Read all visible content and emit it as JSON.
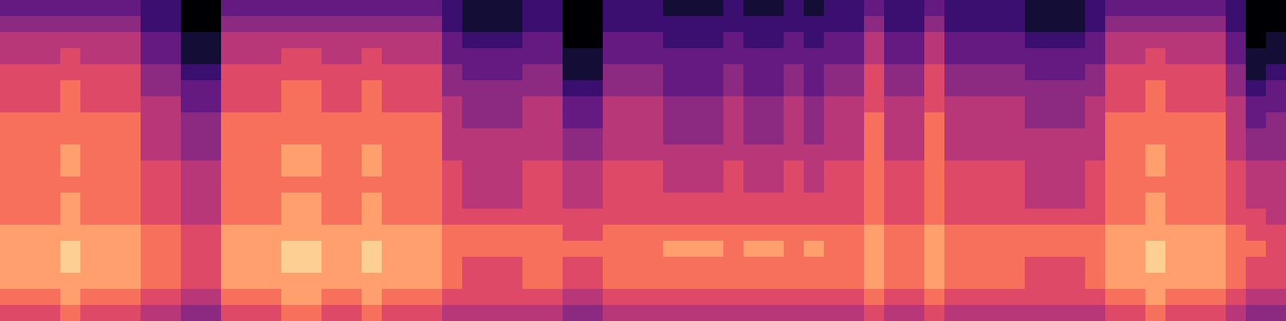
{
  "chart_data": {
    "type": "heatmap",
    "color": "magma",
    "tick_labels": false,
    "zlim": [
      0,
      10
    ],
    "cells": [
      [
        3,
        3,
        3,
        3,
        3,
        3,
        3,
        2,
        2,
        0,
        0,
        3,
        3,
        3,
        3,
        3,
        3,
        3,
        3,
        3,
        3,
        3,
        2,
        1,
        1,
        1,
        2,
        2,
        0,
        0,
        2,
        2,
        2,
        1,
        1,
        1,
        2,
        1,
        1,
        2,
        1,
        2,
        2,
        3,
        2,
        2,
        3,
        2,
        2,
        2,
        2,
        1,
        1,
        1,
        2,
        3,
        3,
        3,
        3,
        3,
        3,
        2,
        0,
        0
      ],
      [
        4,
        4,
        4,
        4,
        4,
        4,
        4,
        2,
        2,
        0,
        0,
        4,
        4,
        4,
        4,
        4,
        4,
        4,
        4,
        4,
        4,
        4,
        2,
        1,
        1,
        1,
        2,
        2,
        0,
        0,
        2,
        2,
        2,
        2,
        2,
        2,
        2,
        2,
        2,
        2,
        2,
        2,
        2,
        4,
        2,
        2,
        4,
        2,
        2,
        2,
        2,
        1,
        1,
        1,
        2,
        4,
        4,
        4,
        4,
        4,
        4,
        2,
        0,
        0
      ],
      [
        5,
        5,
        5,
        5,
        5,
        5,
        5,
        3,
        3,
        1,
        1,
        5,
        5,
        5,
        5,
        5,
        5,
        5,
        5,
        5,
        5,
        5,
        3,
        2,
        2,
        2,
        3,
        3,
        0,
        0,
        3,
        3,
        3,
        2,
        2,
        2,
        3,
        2,
        2,
        3,
        2,
        3,
        3,
        5,
        3,
        3,
        5,
        3,
        3,
        3,
        3,
        2,
        2,
        2,
        3,
        5,
        5,
        5,
        5,
        5,
        5,
        3,
        0,
        1
      ],
      [
        5,
        5,
        5,
        6,
        5,
        5,
        5,
        3,
        3,
        1,
        1,
        5,
        5,
        5,
        6,
        6,
        5,
        5,
        6,
        5,
        5,
        5,
        3,
        3,
        3,
        3,
        3,
        3,
        1,
        1,
        3,
        3,
        3,
        3,
        3,
        3,
        3,
        3,
        3,
        3,
        3,
        3,
        3,
        5,
        3,
        3,
        5,
        3,
        3,
        3,
        3,
        3,
        3,
        3,
        3,
        5,
        5,
        6,
        5,
        5,
        5,
        3,
        1,
        1
      ],
      [
        6,
        6,
        6,
        6,
        6,
        6,
        6,
        4,
        4,
        2,
        2,
        6,
        6,
        6,
        6,
        6,
        6,
        6,
        6,
        6,
        6,
        6,
        4,
        3,
        3,
        3,
        4,
        4,
        1,
        1,
        4,
        4,
        4,
        3,
        3,
        3,
        4,
        3,
        3,
        4,
        3,
        4,
        4,
        6,
        4,
        4,
        6,
        4,
        4,
        4,
        4,
        3,
        3,
        3,
        4,
        6,
        6,
        6,
        6,
        6,
        6,
        4,
        1,
        2
      ],
      [
        6,
        6,
        6,
        7,
        6,
        6,
        6,
        4,
        4,
        3,
        3,
        6,
        6,
        6,
        7,
        7,
        6,
        6,
        7,
        6,
        6,
        6,
        4,
        4,
        4,
        4,
        4,
        4,
        2,
        2,
        4,
        4,
        4,
        3,
        3,
        3,
        4,
        3,
        3,
        4,
        3,
        4,
        4,
        6,
        4,
        4,
        6,
        4,
        4,
        4,
        4,
        4,
        4,
        4,
        4,
        6,
        6,
        7,
        6,
        6,
        6,
        4,
        2,
        3
      ],
      [
        6,
        6,
        6,
        7,
        6,
        6,
        6,
        5,
        5,
        3,
        3,
        6,
        6,
        6,
        7,
        7,
        6,
        6,
        7,
        6,
        6,
        6,
        5,
        4,
        4,
        4,
        5,
        5,
        3,
        3,
        5,
        5,
        5,
        4,
        4,
        4,
        5,
        4,
        4,
        5,
        4,
        5,
        5,
        6,
        5,
        5,
        6,
        5,
        5,
        5,
        5,
        4,
        4,
        4,
        5,
        6,
        6,
        7,
        6,
        6,
        6,
        5,
        3,
        3
      ],
      [
        7,
        7,
        7,
        7,
        7,
        7,
        7,
        5,
        5,
        4,
        4,
        7,
        7,
        7,
        7,
        7,
        7,
        7,
        7,
        7,
        7,
        7,
        5,
        4,
        4,
        4,
        5,
        5,
        3,
        3,
        5,
        5,
        5,
        4,
        4,
        4,
        5,
        4,
        4,
        5,
        4,
        5,
        5,
        7,
        5,
        5,
        7,
        5,
        5,
        5,
        5,
        4,
        4,
        4,
        5,
        7,
        7,
        7,
        7,
        7,
        7,
        5,
        3,
        4
      ],
      [
        7,
        7,
        7,
        7,
        7,
        7,
        7,
        5,
        5,
        4,
        4,
        7,
        7,
        7,
        7,
        7,
        7,
        7,
        7,
        7,
        7,
        7,
        5,
        5,
        5,
        5,
        5,
        5,
        4,
        4,
        5,
        5,
        5,
        4,
        4,
        4,
        5,
        4,
        4,
        5,
        4,
        5,
        5,
        7,
        5,
        5,
        7,
        5,
        5,
        5,
        5,
        5,
        5,
        5,
        5,
        7,
        7,
        7,
        7,
        7,
        7,
        5,
        4,
        4
      ],
      [
        7,
        7,
        7,
        8,
        7,
        7,
        7,
        5,
        5,
        4,
        4,
        7,
        7,
        7,
        8,
        8,
        7,
        7,
        8,
        7,
        7,
        7,
        5,
        5,
        5,
        5,
        5,
        5,
        4,
        4,
        5,
        5,
        5,
        5,
        5,
        5,
        5,
        5,
        5,
        5,
        5,
        5,
        5,
        7,
        5,
        5,
        7,
        5,
        5,
        5,
        5,
        5,
        5,
        5,
        5,
        7,
        7,
        8,
        7,
        7,
        7,
        5,
        4,
        4
      ],
      [
        7,
        7,
        7,
        8,
        7,
        7,
        7,
        6,
        6,
        5,
        5,
        7,
        7,
        7,
        8,
        8,
        7,
        7,
        8,
        7,
        7,
        7,
        6,
        5,
        5,
        5,
        6,
        6,
        5,
        5,
        6,
        6,
        6,
        5,
        5,
        5,
        6,
        5,
        5,
        6,
        5,
        6,
        6,
        7,
        6,
        6,
        7,
        6,
        6,
        6,
        6,
        5,
        5,
        5,
        6,
        7,
        7,
        8,
        7,
        7,
        7,
        6,
        5,
        5
      ],
      [
        7,
        7,
        7,
        7,
        7,
        7,
        7,
        6,
        6,
        5,
        5,
        7,
        7,
        7,
        7,
        7,
        7,
        7,
        7,
        7,
        7,
        7,
        6,
        5,
        5,
        5,
        6,
        6,
        5,
        5,
        6,
        6,
        6,
        5,
        5,
        5,
        6,
        5,
        5,
        6,
        5,
        6,
        6,
        7,
        6,
        6,
        7,
        6,
        6,
        6,
        6,
        5,
        5,
        5,
        6,
        7,
        7,
        7,
        7,
        7,
        7,
        6,
        5,
        5
      ],
      [
        7,
        7,
        7,
        8,
        7,
        7,
        7,
        6,
        6,
        5,
        5,
        7,
        7,
        7,
        8,
        8,
        7,
        7,
        8,
        7,
        7,
        7,
        6,
        5,
        5,
        5,
        6,
        6,
        5,
        5,
        6,
        6,
        6,
        6,
        6,
        6,
        6,
        6,
        6,
        6,
        6,
        6,
        6,
        7,
        6,
        6,
        7,
        6,
        6,
        6,
        6,
        5,
        5,
        5,
        6,
        7,
        7,
        8,
        7,
        7,
        7,
        6,
        5,
        5
      ],
      [
        7,
        7,
        7,
        8,
        7,
        7,
        7,
        6,
        6,
        5,
        5,
        7,
        7,
        7,
        8,
        8,
        7,
        7,
        8,
        7,
        7,
        7,
        6,
        6,
        6,
        6,
        6,
        6,
        6,
        6,
        6,
        6,
        6,
        6,
        6,
        6,
        6,
        6,
        6,
        6,
        6,
        6,
        6,
        7,
        6,
        6,
        7,
        6,
        6,
        6,
        6,
        6,
        6,
        6,
        6,
        7,
        7,
        8,
        7,
        7,
        7,
        6,
        6,
        5
      ],
      [
        8,
        8,
        8,
        8,
        8,
        8,
        8,
        7,
        7,
        6,
        6,
        8,
        8,
        8,
        8,
        8,
        8,
        8,
        8,
        8,
        8,
        8,
        7,
        7,
        7,
        7,
        7,
        7,
        6,
        6,
        7,
        7,
        7,
        7,
        7,
        7,
        7,
        7,
        7,
        7,
        7,
        7,
        7,
        8,
        7,
        7,
        8,
        7,
        7,
        7,
        7,
        7,
        7,
        7,
        7,
        8,
        8,
        8,
        8,
        8,
        8,
        7,
        6,
        6
      ],
      [
        8,
        8,
        8,
        9,
        8,
        8,
        8,
        7,
        7,
        6,
        6,
        8,
        8,
        8,
        9,
        9,
        8,
        8,
        9,
        8,
        8,
        8,
        7,
        7,
        7,
        7,
        7,
        7,
        7,
        7,
        7,
        7,
        7,
        8,
        8,
        8,
        7,
        8,
        8,
        7,
        8,
        7,
        7,
        8,
        7,
        7,
        8,
        7,
        7,
        7,
        7,
        7,
        7,
        7,
        7,
        8,
        8,
        9,
        8,
        8,
        8,
        7,
        7,
        6
      ],
      [
        8,
        8,
        8,
        9,
        8,
        8,
        8,
        7,
        7,
        6,
        6,
        8,
        8,
        8,
        9,
        9,
        8,
        8,
        9,
        8,
        8,
        8,
        7,
        6,
        6,
        6,
        7,
        7,
        6,
        6,
        7,
        7,
        7,
        7,
        7,
        7,
        7,
        7,
        7,
        7,
        7,
        7,
        7,
        8,
        7,
        7,
        8,
        7,
        7,
        7,
        7,
        6,
        6,
        6,
        7,
        8,
        8,
        9,
        8,
        8,
        8,
        7,
        6,
        6
      ],
      [
        8,
        8,
        8,
        8,
        8,
        8,
        8,
        7,
        7,
        6,
        6,
        8,
        8,
        8,
        8,
        8,
        8,
        8,
        8,
        8,
        8,
        8,
        7,
        6,
        6,
        6,
        7,
        7,
        6,
        6,
        7,
        7,
        7,
        7,
        7,
        7,
        7,
        7,
        7,
        7,
        7,
        7,
        7,
        8,
        7,
        7,
        8,
        7,
        7,
        7,
        7,
        6,
        6,
        6,
        7,
        8,
        8,
        8,
        8,
        8,
        8,
        7,
        6,
        6
      ],
      [
        7,
        7,
        7,
        8,
        7,
        7,
        7,
        6,
        6,
        5,
        5,
        7,
        7,
        7,
        8,
        8,
        7,
        7,
        8,
        7,
        7,
        7,
        6,
        6,
        6,
        6,
        6,
        6,
        5,
        5,
        6,
        6,
        6,
        6,
        6,
        6,
        6,
        6,
        6,
        6,
        6,
        6,
        6,
        7,
        6,
        6,
        7,
        6,
        6,
        6,
        6,
        6,
        6,
        6,
        6,
        7,
        7,
        8,
        7,
        7,
        7,
        6,
        5,
        5
      ],
      [
        6,
        6,
        6,
        7,
        6,
        6,
        6,
        5,
        5,
        4,
        4,
        6,
        6,
        6,
        7,
        7,
        6,
        6,
        7,
        6,
        6,
        6,
        5,
        5,
        5,
        5,
        5,
        5,
        4,
        4,
        5,
        5,
        5,
        5,
        5,
        5,
        5,
        5,
        5,
        5,
        5,
        5,
        5,
        6,
        5,
        5,
        6,
        5,
        5,
        5,
        5,
        5,
        5,
        5,
        5,
        6,
        6,
        7,
        6,
        6,
        6,
        5,
        4,
        4
      ]
    ]
  }
}
